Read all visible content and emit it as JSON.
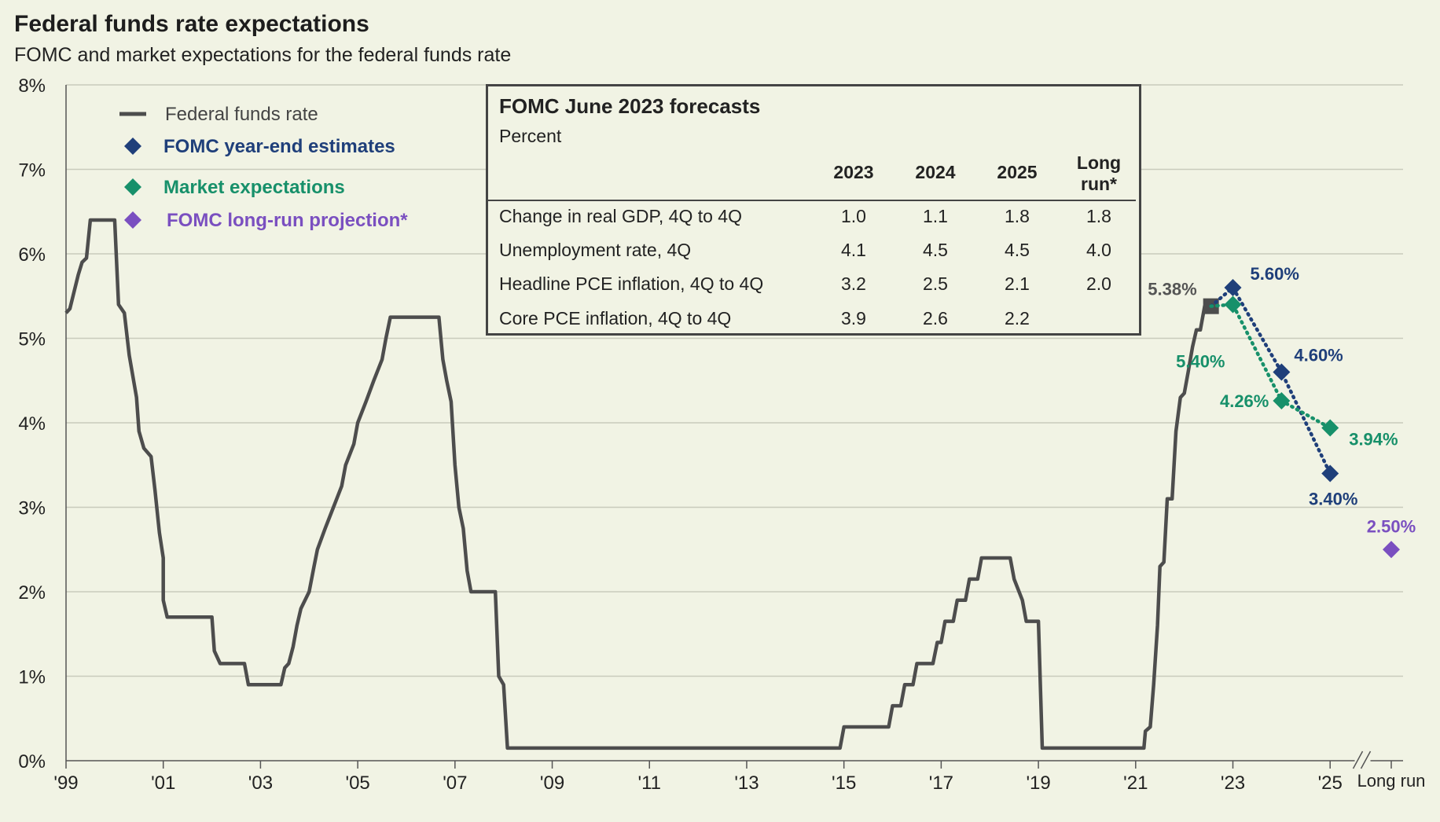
{
  "header": {
    "title": "Federal funds rate expectations",
    "subtitle": "FOMC and market expectations for the federal funds rate"
  },
  "legend": [
    {
      "label": "Federal funds rate",
      "color": "#4d4d4d",
      "marker": "line"
    },
    {
      "label": "FOMC year-end estimates",
      "color": "#1f3f7a",
      "marker": "diamond"
    },
    {
      "label": "Market expectations",
      "color": "#17906a",
      "marker": "diamond"
    },
    {
      "label": "FOMC long-run projection*",
      "color": "#7a4fc0",
      "marker": "diamond"
    }
  ],
  "forecast_table": {
    "title": "FOMC June 2023 forecasts",
    "unit": "Percent",
    "columns": [
      "2023",
      "2024",
      "2025"
    ],
    "long_run_header": [
      "Long",
      "run*"
    ],
    "rows": [
      {
        "label": "Change in real GDP, 4Q to 4Q",
        "values": [
          "1.0",
          "1.1",
          "1.8",
          "1.8"
        ]
      },
      {
        "label": "Unemployment rate, 4Q",
        "values": [
          "4.1",
          "4.5",
          "4.5",
          "4.0"
        ]
      },
      {
        "label": "Headline PCE inflation, 4Q to 4Q",
        "values": [
          "3.2",
          "2.5",
          "2.1",
          "2.0"
        ]
      },
      {
        "label": "Core PCE inflation, 4Q to 4Q",
        "values": [
          "3.9",
          "2.6",
          "2.2",
          ""
        ]
      }
    ]
  },
  "chart_data": {
    "type": "line",
    "title": "Federal funds rate expectations",
    "ylabel": "",
    "ylim": [
      0,
      8
    ],
    "yticks": [
      0,
      1,
      2,
      3,
      4,
      5,
      6,
      7,
      8
    ],
    "ytick_labels": [
      "0%",
      "1%",
      "2%",
      "3%",
      "4%",
      "5%",
      "6%",
      "7%",
      "8%"
    ],
    "xlim": [
      1999,
      2026.5
    ],
    "xticks": [
      1999,
      2001,
      2003,
      2005,
      2007,
      2009,
      2011,
      2013,
      2015,
      2017,
      2019,
      2021,
      2023,
      2025
    ],
    "xtick_labels": [
      "'99",
      "'01",
      "'03",
      "'05",
      "'07",
      "'09",
      "'11",
      "'13",
      "'15",
      "'17",
      "'19",
      "'21",
      "'23",
      "'25"
    ],
    "long_run_label": "Long run",
    "grid": true,
    "series": [
      {
        "name": "Federal funds rate",
        "color": "#4d4d4d",
        "points": [
          [
            1999.0,
            5.3
          ],
          [
            1999.08,
            5.35
          ],
          [
            1999.25,
            5.75
          ],
          [
            1999.33,
            5.9
          ],
          [
            1999.42,
            5.95
          ],
          [
            1999.5,
            6.4
          ],
          [
            1999.67,
            6.4
          ],
          [
            1999.83,
            6.4
          ],
          [
            2000.0,
            6.4
          ],
          [
            2000.08,
            5.4
          ],
          [
            2000.2,
            5.3
          ],
          [
            2000.3,
            4.8
          ],
          [
            2000.45,
            4.3
          ],
          [
            2000.5,
            3.9
          ],
          [
            2000.6,
            3.7
          ],
          [
            2000.75,
            3.6
          ],
          [
            2000.83,
            3.2
          ],
          [
            2000.92,
            2.7
          ],
          [
            2001.0,
            2.4
          ],
          [
            2001.0,
            1.9
          ],
          [
            2001.08,
            1.7
          ],
          [
            2001.5,
            1.7
          ],
          [
            2001.83,
            1.7
          ],
          [
            2002.0,
            1.7
          ],
          [
            2002.05,
            1.3
          ],
          [
            2002.17,
            1.15
          ],
          [
            2002.5,
            1.15
          ],
          [
            2002.67,
            1.15
          ],
          [
            2002.75,
            0.9
          ],
          [
            2003.0,
            0.9
          ],
          [
            2003.33,
            0.9
          ],
          [
            2003.42,
            0.9
          ],
          [
            2003.5,
            1.1
          ],
          [
            2003.58,
            1.15
          ],
          [
            2003.67,
            1.35
          ],
          [
            2003.75,
            1.6
          ],
          [
            2003.83,
            1.8
          ],
          [
            2004.0,
            2.0
          ],
          [
            2004.1,
            2.3
          ],
          [
            2004.17,
            2.5
          ],
          [
            2004.33,
            2.75
          ],
          [
            2004.5,
            3.0
          ],
          [
            2004.67,
            3.25
          ],
          [
            2004.75,
            3.5
          ],
          [
            2004.92,
            3.75
          ],
          [
            2005.0,
            4.0
          ],
          [
            2005.17,
            4.25
          ],
          [
            2005.33,
            4.5
          ],
          [
            2005.5,
            4.75
          ],
          [
            2005.58,
            5.0
          ],
          [
            2005.67,
            5.25
          ],
          [
            2005.83,
            5.25
          ],
          [
            2006.5,
            5.25
          ],
          [
            2006.67,
            5.25
          ],
          [
            2006.75,
            4.75
          ],
          [
            2006.83,
            4.5
          ],
          [
            2006.92,
            4.25
          ],
          [
            2007.0,
            3.5
          ],
          [
            2007.08,
            3.0
          ],
          [
            2007.17,
            2.75
          ],
          [
            2007.25,
            2.25
          ],
          [
            2007.33,
            2.0
          ],
          [
            2007.42,
            2.0
          ],
          [
            2007.67,
            2.0
          ],
          [
            2007.83,
            2.0
          ],
          [
            2007.9,
            1.0
          ],
          [
            2008.0,
            0.9
          ],
          [
            2008.08,
            0.15
          ],
          [
            2008.5,
            0.15
          ],
          [
            2010.0,
            0.15
          ],
          [
            2012.0,
            0.15
          ],
          [
            2014.0,
            0.15
          ],
          [
            2014.92,
            0.15
          ],
          [
            2015.0,
            0.4
          ],
          [
            2015.5,
            0.4
          ],
          [
            2015.92,
            0.4
          ],
          [
            2016.0,
            0.65
          ],
          [
            2016.17,
            0.65
          ],
          [
            2016.25,
            0.9
          ],
          [
            2016.42,
            0.9
          ],
          [
            2016.5,
            1.15
          ],
          [
            2016.67,
            1.15
          ],
          [
            2016.83,
            1.15
          ],
          [
            2016.92,
            1.4
          ],
          [
            2017.0,
            1.4
          ],
          [
            2017.08,
            1.65
          ],
          [
            2017.25,
            1.65
          ],
          [
            2017.33,
            1.9
          ],
          [
            2017.5,
            1.9
          ],
          [
            2017.58,
            2.15
          ],
          [
            2017.75,
            2.15
          ],
          [
            2017.83,
            2.4
          ],
          [
            2018.0,
            2.4
          ],
          [
            2018.25,
            2.4
          ],
          [
            2018.42,
            2.4
          ],
          [
            2018.5,
            2.15
          ],
          [
            2018.67,
            1.9
          ],
          [
            2018.75,
            1.65
          ],
          [
            2018.92,
            1.65
          ],
          [
            2019.0,
            1.65
          ],
          [
            2019.08,
            0.15
          ],
          [
            2019.5,
            0.15
          ],
          [
            2020.0,
            0.15
          ],
          [
            2020.5,
            0.15
          ],
          [
            2021.0,
            0.15
          ],
          [
            2021.17,
            0.15
          ],
          [
            2021.2,
            0.35
          ],
          [
            2021.3,
            0.4
          ],
          [
            2021.37,
            0.9
          ],
          [
            2021.45,
            1.6
          ],
          [
            2021.5,
            2.3
          ],
          [
            2021.58,
            2.35
          ],
          [
            2021.65,
            3.1
          ],
          [
            2021.75,
            3.1
          ],
          [
            2021.83,
            3.9
          ],
          [
            2021.92,
            4.3
          ],
          [
            2022.0,
            4.35
          ],
          [
            2022.08,
            4.6
          ],
          [
            2022.17,
            4.9
          ],
          [
            2022.25,
            5.1
          ],
          [
            2022.33,
            5.1
          ],
          [
            2022.42,
            5.38
          ],
          [
            2022.55,
            5.38
          ]
        ]
      },
      {
        "name": "FOMC year-end estimates",
        "color": "#1f3f7a",
        "x": [
          2023,
          2024,
          2025
        ],
        "values": [
          5.6,
          4.6,
          3.4
        ],
        "labels": [
          "5.60%",
          "4.60%",
          "3.40%"
        ]
      },
      {
        "name": "Market expectations",
        "color": "#17906a",
        "x": [
          2023,
          2024,
          2025
        ],
        "values": [
          5.4,
          4.26,
          3.94
        ],
        "labels": [
          "5.40%",
          "4.26%",
          "3.94%"
        ]
      },
      {
        "name": "FOMC long-run projection*",
        "color": "#7a4fc0",
        "x": [
          "Long run"
        ],
        "values": [
          2.5
        ],
        "labels": [
          "2.50%"
        ]
      }
    ],
    "current_marker": {
      "x": 2022.55,
      "value": 5.38,
      "label": "5.38%"
    }
  }
}
